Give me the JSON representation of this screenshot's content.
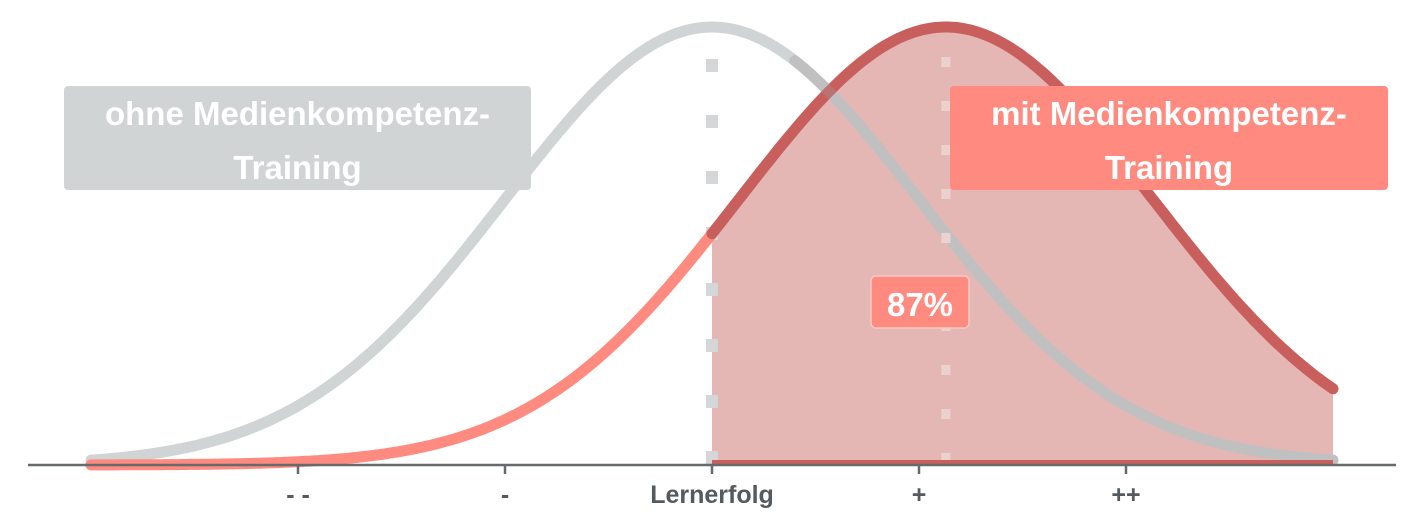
{
  "chart_data": {
    "type": "area",
    "xlim": [
      -4.1,
      3.1
    ],
    "ylim": [
      0,
      1
    ],
    "grid": false,
    "x_ticks": [
      {
        "value": -2,
        "label": "- -"
      },
      {
        "value": -1,
        "label": "-"
      },
      {
        "value": 0,
        "label": "Lernerfolg"
      },
      {
        "value": 1,
        "label": "+"
      },
      {
        "value": 2,
        "label": "++"
      }
    ],
    "series": [
      {
        "label": "ohne Medienkompetenz-Training",
        "label_lines": [
          "ohne Medienkompetenz-",
          "Training"
        ],
        "mean": 0,
        "sd": 1,
        "color": "#d1d4d5",
        "label_position": "left"
      },
      {
        "label": "mit Medienkompetenz-Training",
        "label_lines": [
          "mit Medienkompetenz-",
          "Training"
        ],
        "mean": 1.13,
        "sd": 1,
        "color": "#c95f5d",
        "color_light": "#ff8a80",
        "label_position": "right"
      }
    ],
    "shaded_region": {
      "from": 0,
      "series": "mit Medienkompetenz-Training",
      "fill": "#e3b3b0",
      "annotation": "87%"
    },
    "reference_lines": [
      0,
      1.13
    ],
    "colors": {
      "grey": "#d1d4d5",
      "red_dark": "#c95f5d",
      "red_light": "#ff8a80",
      "shade": "#e3b3b0",
      "axis": "#666a6d",
      "text": "#555a5e"
    }
  }
}
